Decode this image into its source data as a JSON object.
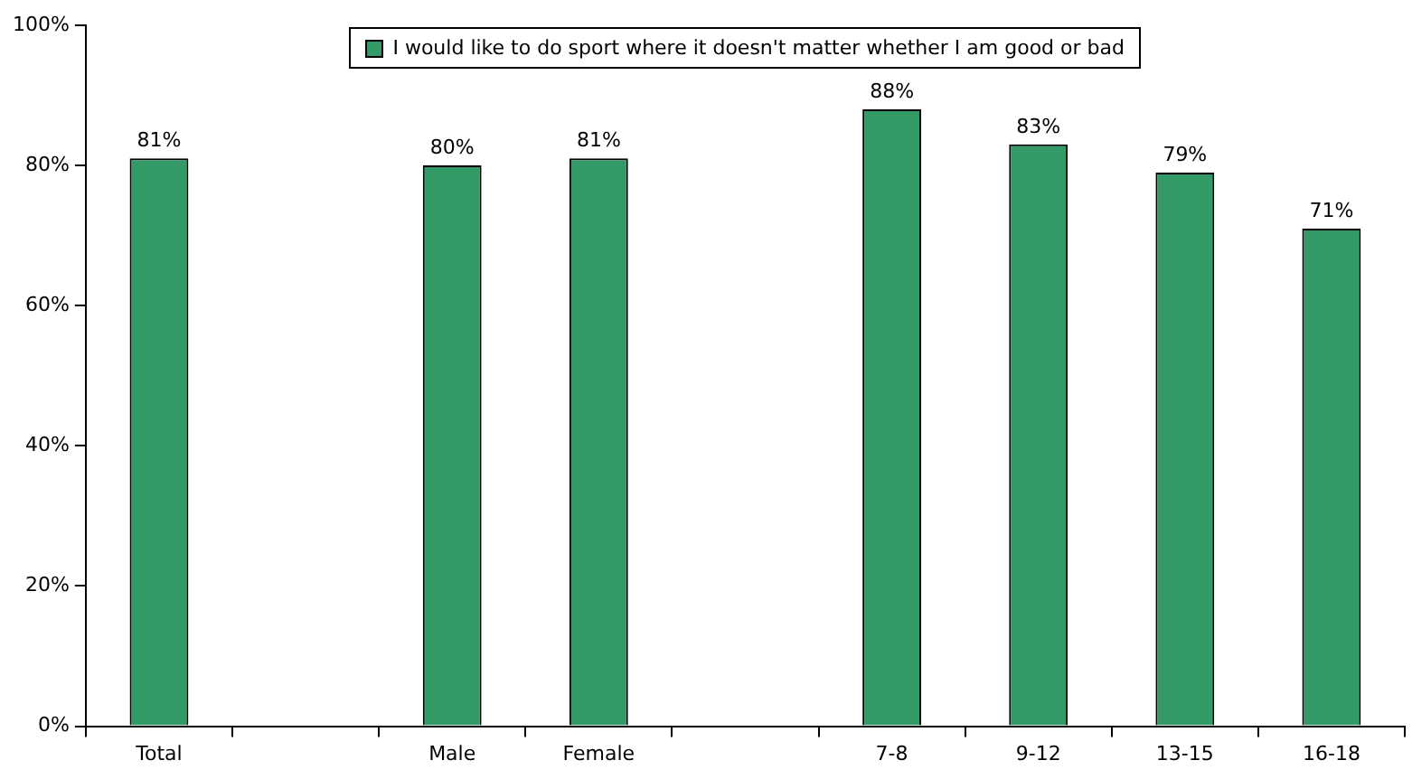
{
  "chart_data": {
    "type": "bar",
    "categories": [
      "Total",
      null,
      "Male",
      "Female",
      null,
      "7-8",
      "9-12",
      "13-15",
      "16-18"
    ],
    "series": [
      {
        "name": "I would like to do sport where it doesn't matter whether I am good or bad",
        "color": "#339966",
        "values": [
          81,
          null,
          80,
          81,
          null,
          88,
          83,
          79,
          71
        ],
        "value_labels": [
          "81%",
          null,
          "80%",
          "81%",
          null,
          "88%",
          "83%",
          "79%",
          "71%"
        ]
      }
    ],
    "ylim": [
      0,
      100
    ],
    "yticks": [
      {
        "value": 0,
        "label": "0%"
      },
      {
        "value": 20,
        "label": "20%"
      },
      {
        "value": 40,
        "label": "40%"
      },
      {
        "value": 60,
        "label": "60%"
      },
      {
        "value": 80,
        "label": "80%"
      },
      {
        "value": 100,
        "label": "100%"
      }
    ],
    "grid": false,
    "legend": "top"
  }
}
